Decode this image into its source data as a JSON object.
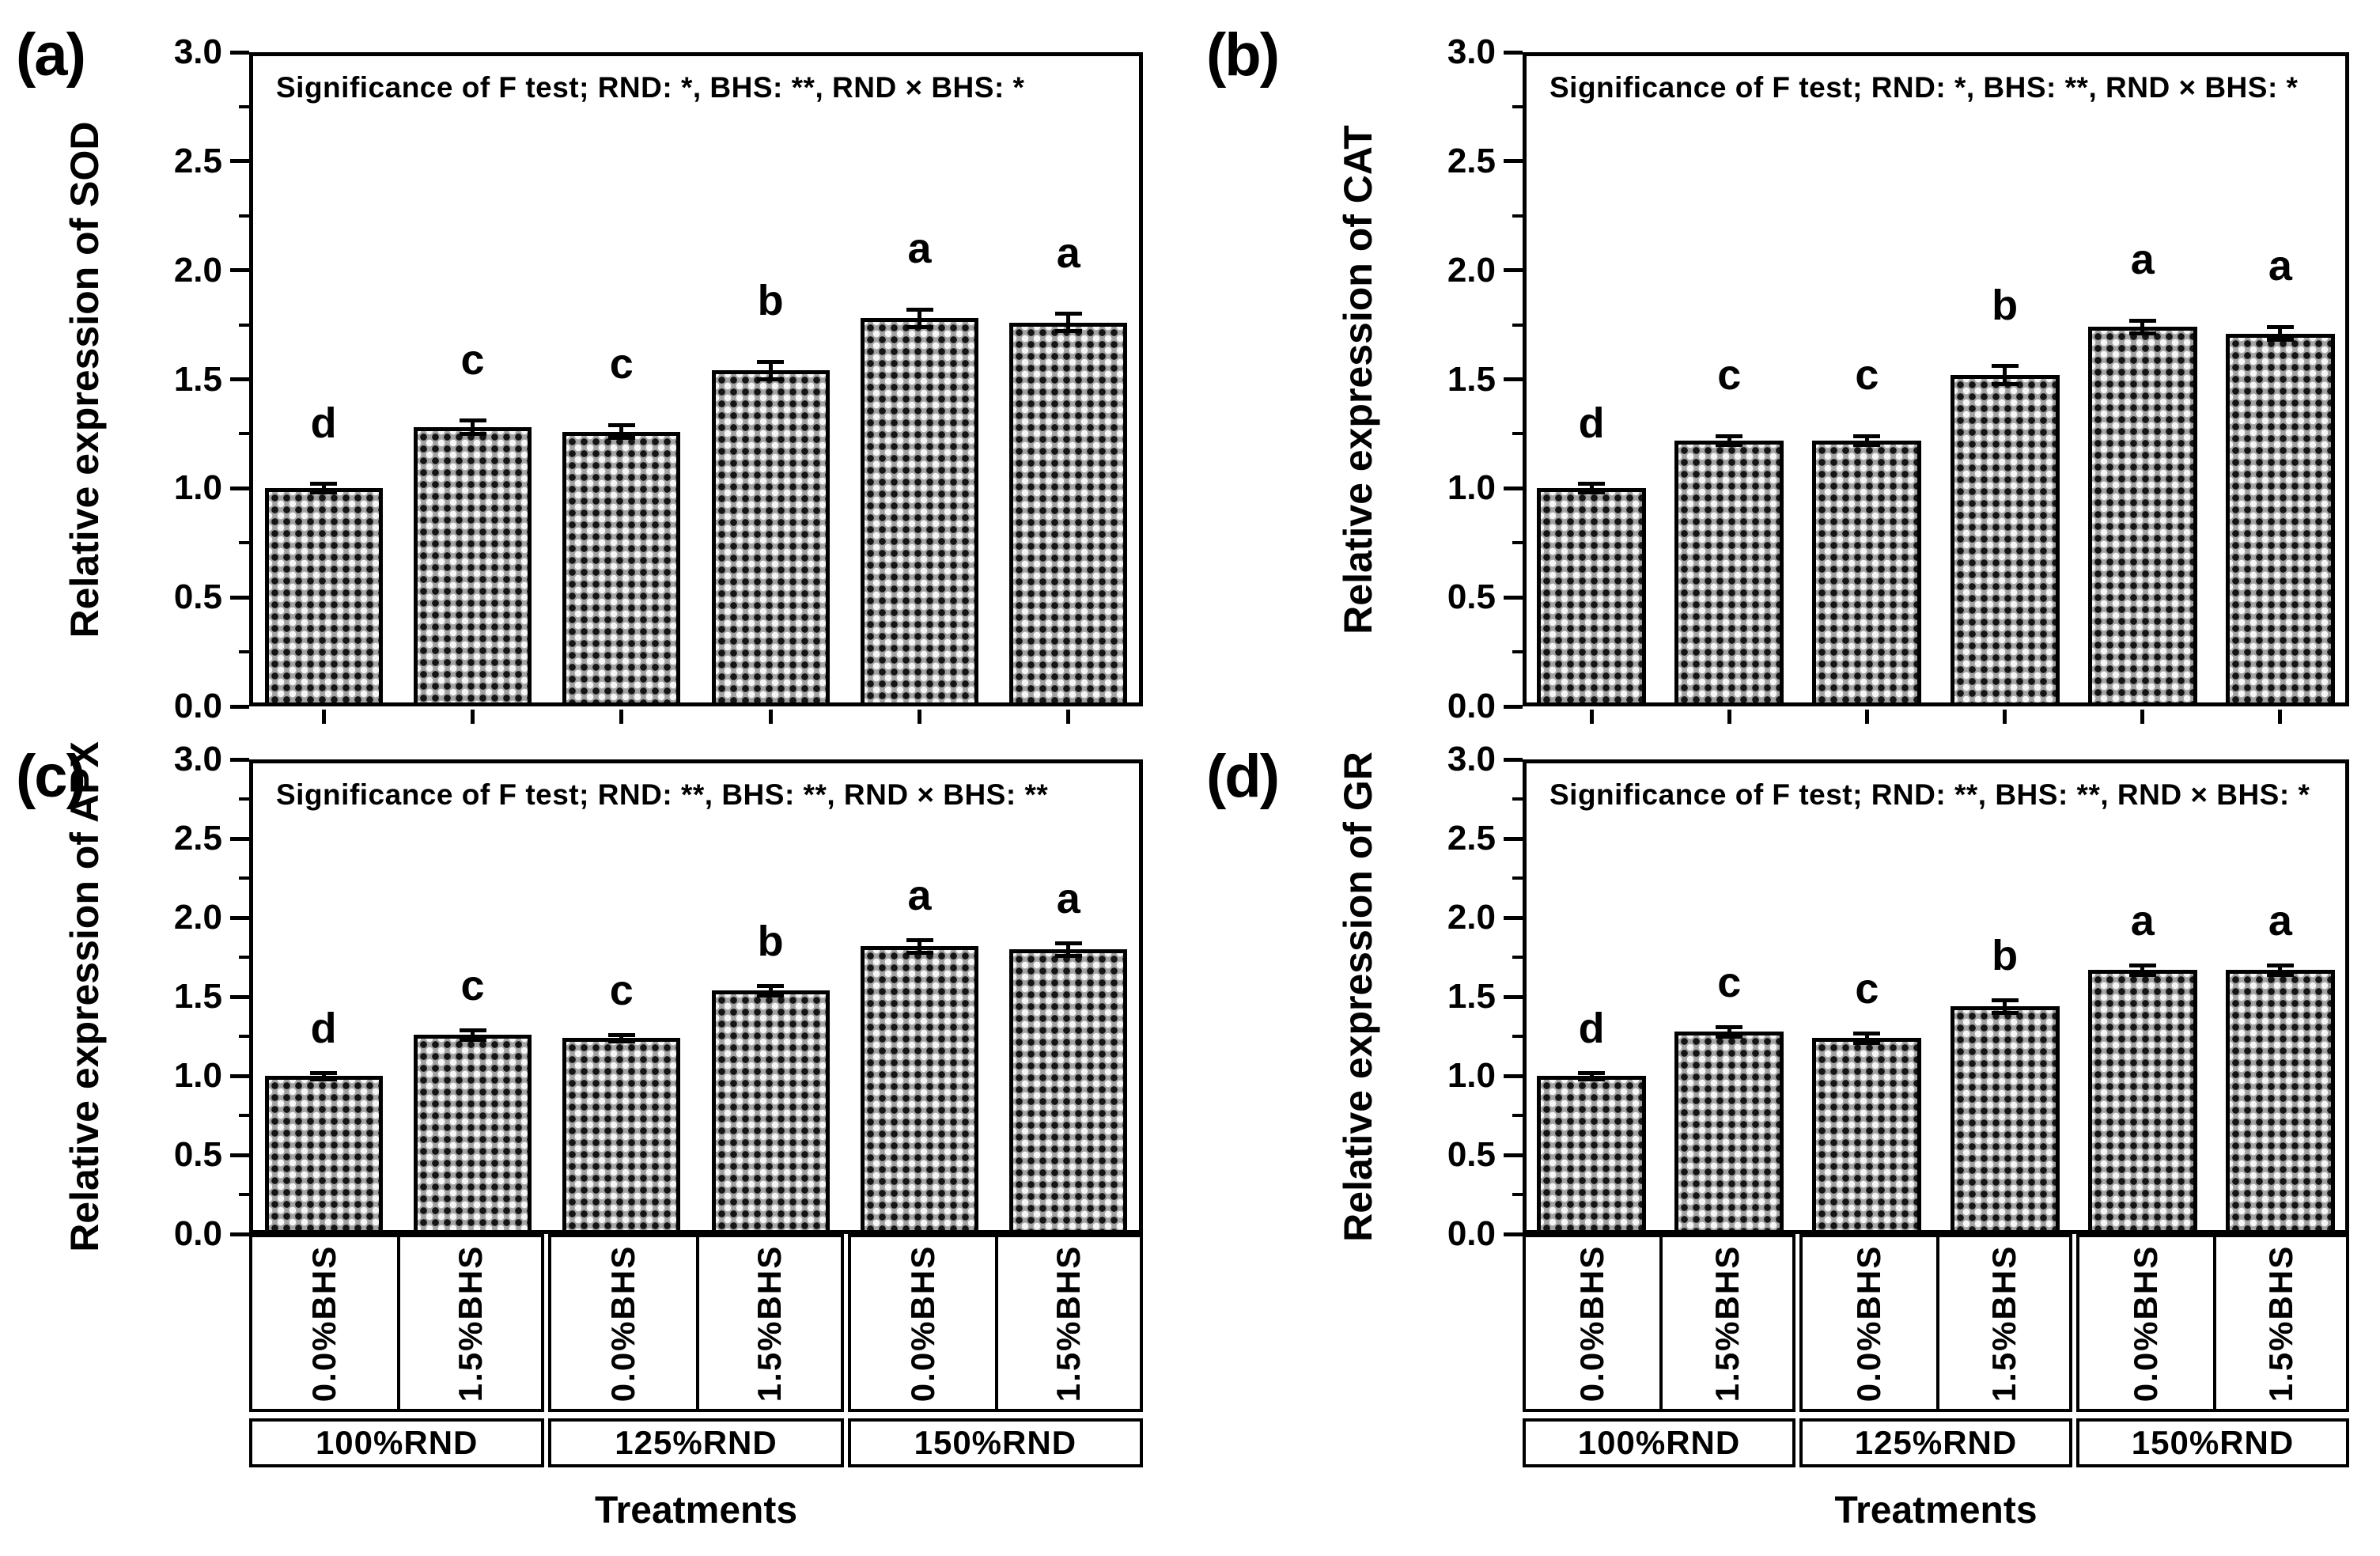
{
  "figure": {
    "panel_labels": [
      "(a)",
      "(b)",
      "(c)",
      "(d)"
    ]
  },
  "y_axis": {
    "tick_labels": [
      "0.0",
      "0.5",
      "1.0",
      "1.5",
      "2.0",
      "2.5",
      "3.0"
    ],
    "range": [
      0,
      3
    ],
    "major_step": 0.5,
    "minor_step": 0.25
  },
  "x_axis": {
    "bhs_labels": [
      "0.0%BHS",
      "1.5%BHS",
      "0.0%BHS",
      "1.5%BHS",
      "0.0%BHS",
      "1.5%BHS"
    ],
    "group_labels": [
      "100%RND",
      "125%RND",
      "150%RND"
    ],
    "xlabel": "Treatments"
  },
  "chart_data": [
    {
      "type": "bar",
      "panel_label": "(a)",
      "ylabel": "Relative expression of SOD",
      "annotation": "Significance of F test; RND: *, BHS: **, RND × BHS: *",
      "categories": [
        "100%RND 0.0%BHS",
        "100%RND 1.5%BHS",
        "125%RND 0.0%BHS",
        "125%RND 1.5%BHS",
        "150%RND 0.0%BHS",
        "150%RND 1.5%BHS"
      ],
      "values": [
        1.0,
        1.28,
        1.26,
        1.54,
        1.78,
        1.76
      ],
      "errors": [
        0.02,
        0.03,
        0.03,
        0.04,
        0.04,
        0.04
      ],
      "sig_letters": [
        "d",
        "c",
        "c",
        "b",
        "a",
        "a"
      ],
      "ylim": [
        0,
        3
      ],
      "grid": "off",
      "bar_fill": "#a2a2a2",
      "bar_pattern": "checker-dots"
    },
    {
      "type": "bar",
      "panel_label": "(b)",
      "ylabel": "Relative expression of CAT",
      "annotation": "Significance of F test; RND: *, BHS: **, RND × BHS: *",
      "categories": [
        "100%RND 0.0%BHS",
        "100%RND 1.5%BHS",
        "125%RND 0.0%BHS",
        "125%RND 1.5%BHS",
        "150%RND 0.0%BHS",
        "150%RND 1.5%BHS"
      ],
      "values": [
        1.0,
        1.22,
        1.22,
        1.52,
        1.74,
        1.71
      ],
      "errors": [
        0.02,
        0.02,
        0.02,
        0.04,
        0.03,
        0.03
      ],
      "sig_letters": [
        "d",
        "c",
        "c",
        "b",
        "a",
        "a"
      ],
      "ylim": [
        0,
        3
      ],
      "grid": "off",
      "bar_fill": "#a2a2a2",
      "bar_pattern": "checker-dots"
    },
    {
      "type": "bar",
      "panel_label": "(c)",
      "ylabel": "Relative expression of APX",
      "annotation": "Significance of F test; RND: **, BHS: **, RND × BHS: **",
      "categories": [
        "100%RND 0.0%BHS",
        "100%RND 1.5%BHS",
        "125%RND 0.0%BHS",
        "125%RND 1.5%BHS",
        "150%RND 0.0%BHS",
        "150%RND 1.5%BHS"
      ],
      "values": [
        1.0,
        1.26,
        1.24,
        1.54,
        1.82,
        1.8
      ],
      "errors": [
        0.02,
        0.03,
        0.02,
        0.03,
        0.04,
        0.04
      ],
      "sig_letters": [
        "d",
        "c",
        "c",
        "b",
        "a",
        "a"
      ],
      "ylim": [
        0,
        3
      ],
      "grid": "off",
      "bar_fill": "#a2a2a2",
      "bar_pattern": "checker-dots"
    },
    {
      "type": "bar",
      "panel_label": "(d)",
      "ylabel": "Relative expression of GR",
      "annotation": "Significance of F test; RND: **, BHS: **, RND × BHS: *",
      "categories": [
        "100%RND 0.0%BHS",
        "100%RND 1.5%BHS",
        "125%RND 0.0%BHS",
        "125%RND 1.5%BHS",
        "150%RND 0.0%BHS",
        "150%RND 1.5%BHS"
      ],
      "values": [
        1.0,
        1.28,
        1.24,
        1.44,
        1.67,
        1.67
      ],
      "errors": [
        0.02,
        0.03,
        0.03,
        0.04,
        0.03,
        0.03
      ],
      "sig_letters": [
        "d",
        "c",
        "c",
        "b",
        "a",
        "a"
      ],
      "ylim": [
        0,
        3
      ],
      "grid": "off",
      "bar_fill": "#a2a2a2",
      "bar_pattern": "checker-dots"
    }
  ],
  "colors": {
    "axis": "#000000",
    "bar_fill": "#a2a2a2",
    "bar_dot_dark": "#141414",
    "bar_dot_light": "#f6f6f6",
    "background": "#ffffff"
  }
}
